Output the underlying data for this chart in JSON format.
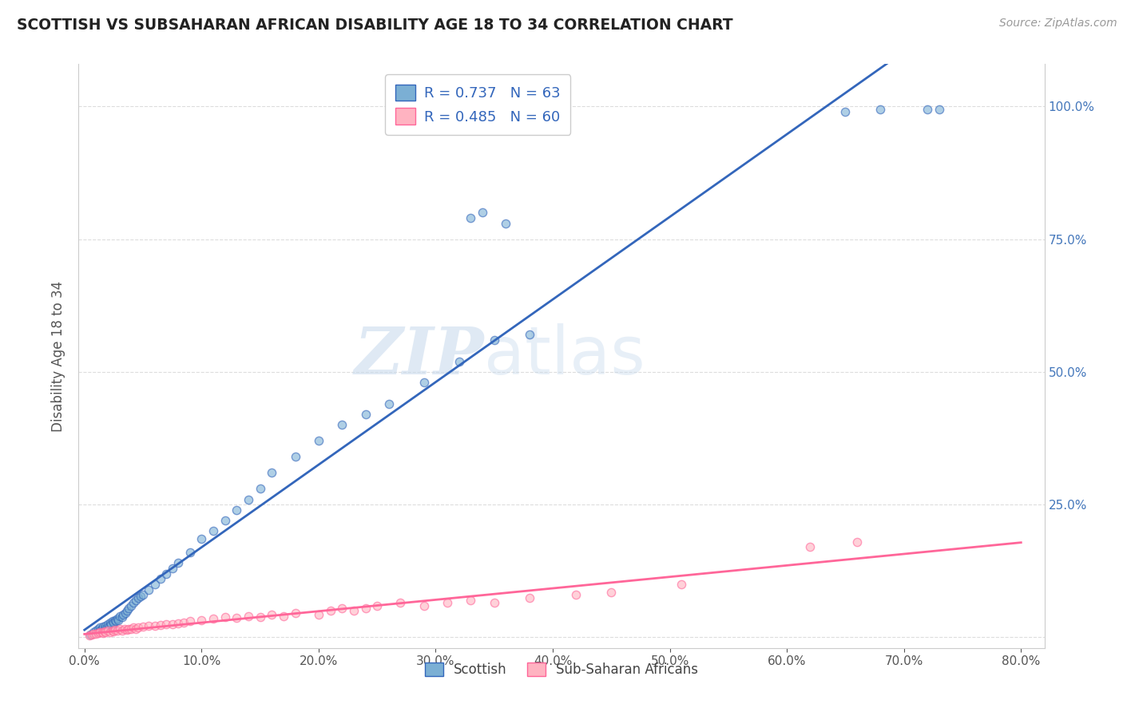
{
  "title": "SCOTTISH VS SUBSAHARAN AFRICAN DISABILITY AGE 18 TO 34 CORRELATION CHART",
  "source": "Source: ZipAtlas.com",
  "xlabel": "",
  "ylabel": "Disability Age 18 to 34",
  "xlim": [
    -0.005,
    0.82
  ],
  "ylim": [
    -0.02,
    1.08
  ],
  "xticks": [
    0.0,
    0.1,
    0.2,
    0.3,
    0.4,
    0.5,
    0.6,
    0.7,
    0.8
  ],
  "xticklabels": [
    "0.0%",
    "10.0%",
    "20.0%",
    "30.0%",
    "40.0%",
    "50.0%",
    "60.0%",
    "70.0%",
    "80.0%"
  ],
  "yticks_right": [
    0.0,
    0.25,
    0.5,
    0.75,
    1.0
  ],
  "yticklabels_right": [
    "",
    "25.0%",
    "50.0%",
    "75.0%",
    "100.0%"
  ],
  "scottish_color": "#7BAFD4",
  "subsaharan_color": "#FFB3C1",
  "scottish_line_color": "#3366BB",
  "subsaharan_line_color": "#FF6699",
  "R_scottish": 0.737,
  "N_scottish": 63,
  "R_subsaharan": 0.485,
  "N_subsaharan": 60,
  "legend_labels": [
    "Scottish",
    "Sub-Saharan Africans"
  ],
  "watermark_zip": "ZIP",
  "watermark_atlas": "atlas",
  "watermark_color_zip": "#C5D8EC",
  "watermark_color_atlas": "#C5D8EC",
  "background_color": "#FFFFFF",
  "scottish_x": [
    0.005,
    0.008,
    0.01,
    0.012,
    0.013,
    0.014,
    0.015,
    0.016,
    0.017,
    0.018,
    0.019,
    0.02,
    0.021,
    0.022,
    0.023,
    0.024,
    0.025,
    0.026,
    0.027,
    0.028,
    0.029,
    0.03,
    0.032,
    0.033,
    0.035,
    0.036,
    0.038,
    0.04,
    0.042,
    0.044,
    0.046,
    0.048,
    0.05,
    0.055,
    0.06,
    0.065,
    0.07,
    0.075,
    0.08,
    0.09,
    0.1,
    0.11,
    0.12,
    0.13,
    0.14,
    0.15,
    0.16,
    0.18,
    0.2,
    0.22,
    0.24,
    0.26,
    0.29,
    0.32,
    0.35,
    0.38,
    0.33,
    0.34,
    0.36,
    0.65,
    0.68,
    0.72,
    0.73
  ],
  "scottish_y": [
    0.005,
    0.01,
    0.012,
    0.015,
    0.018,
    0.014,
    0.016,
    0.02,
    0.015,
    0.022,
    0.018,
    0.025,
    0.022,
    0.028,
    0.025,
    0.03,
    0.028,
    0.032,
    0.03,
    0.035,
    0.032,
    0.04,
    0.038,
    0.042,
    0.045,
    0.05,
    0.055,
    0.06,
    0.065,
    0.07,
    0.075,
    0.078,
    0.08,
    0.09,
    0.1,
    0.11,
    0.12,
    0.13,
    0.14,
    0.16,
    0.185,
    0.2,
    0.22,
    0.24,
    0.26,
    0.28,
    0.31,
    0.34,
    0.37,
    0.4,
    0.42,
    0.44,
    0.48,
    0.52,
    0.56,
    0.57,
    0.79,
    0.8,
    0.78,
    0.99,
    0.995,
    0.995,
    0.995
  ],
  "subsaharan_x": [
    0.004,
    0.006,
    0.008,
    0.01,
    0.012,
    0.013,
    0.015,
    0.016,
    0.017,
    0.018,
    0.02,
    0.022,
    0.024,
    0.025,
    0.026,
    0.028,
    0.03,
    0.032,
    0.034,
    0.036,
    0.038,
    0.04,
    0.042,
    0.044,
    0.046,
    0.05,
    0.055,
    0.06,
    0.065,
    0.07,
    0.075,
    0.08,
    0.085,
    0.09,
    0.1,
    0.11,
    0.12,
    0.13,
    0.14,
    0.15,
    0.16,
    0.17,
    0.18,
    0.2,
    0.21,
    0.22,
    0.23,
    0.24,
    0.25,
    0.27,
    0.29,
    0.31,
    0.33,
    0.35,
    0.38,
    0.42,
    0.45,
    0.51,
    0.62,
    0.66
  ],
  "subsaharan_y": [
    0.003,
    0.005,
    0.006,
    0.007,
    0.008,
    0.009,
    0.01,
    0.008,
    0.011,
    0.009,
    0.012,
    0.01,
    0.013,
    0.011,
    0.014,
    0.013,
    0.015,
    0.013,
    0.015,
    0.014,
    0.016,
    0.015,
    0.018,
    0.016,
    0.018,
    0.02,
    0.022,
    0.021,
    0.023,
    0.025,
    0.024,
    0.026,
    0.028,
    0.03,
    0.032,
    0.035,
    0.038,
    0.036,
    0.04,
    0.038,
    0.042,
    0.04,
    0.045,
    0.042,
    0.05,
    0.055,
    0.05,
    0.055,
    0.06,
    0.065,
    0.06,
    0.065,
    0.07,
    0.065,
    0.075,
    0.08,
    0.085,
    0.1,
    0.17,
    0.18
  ]
}
